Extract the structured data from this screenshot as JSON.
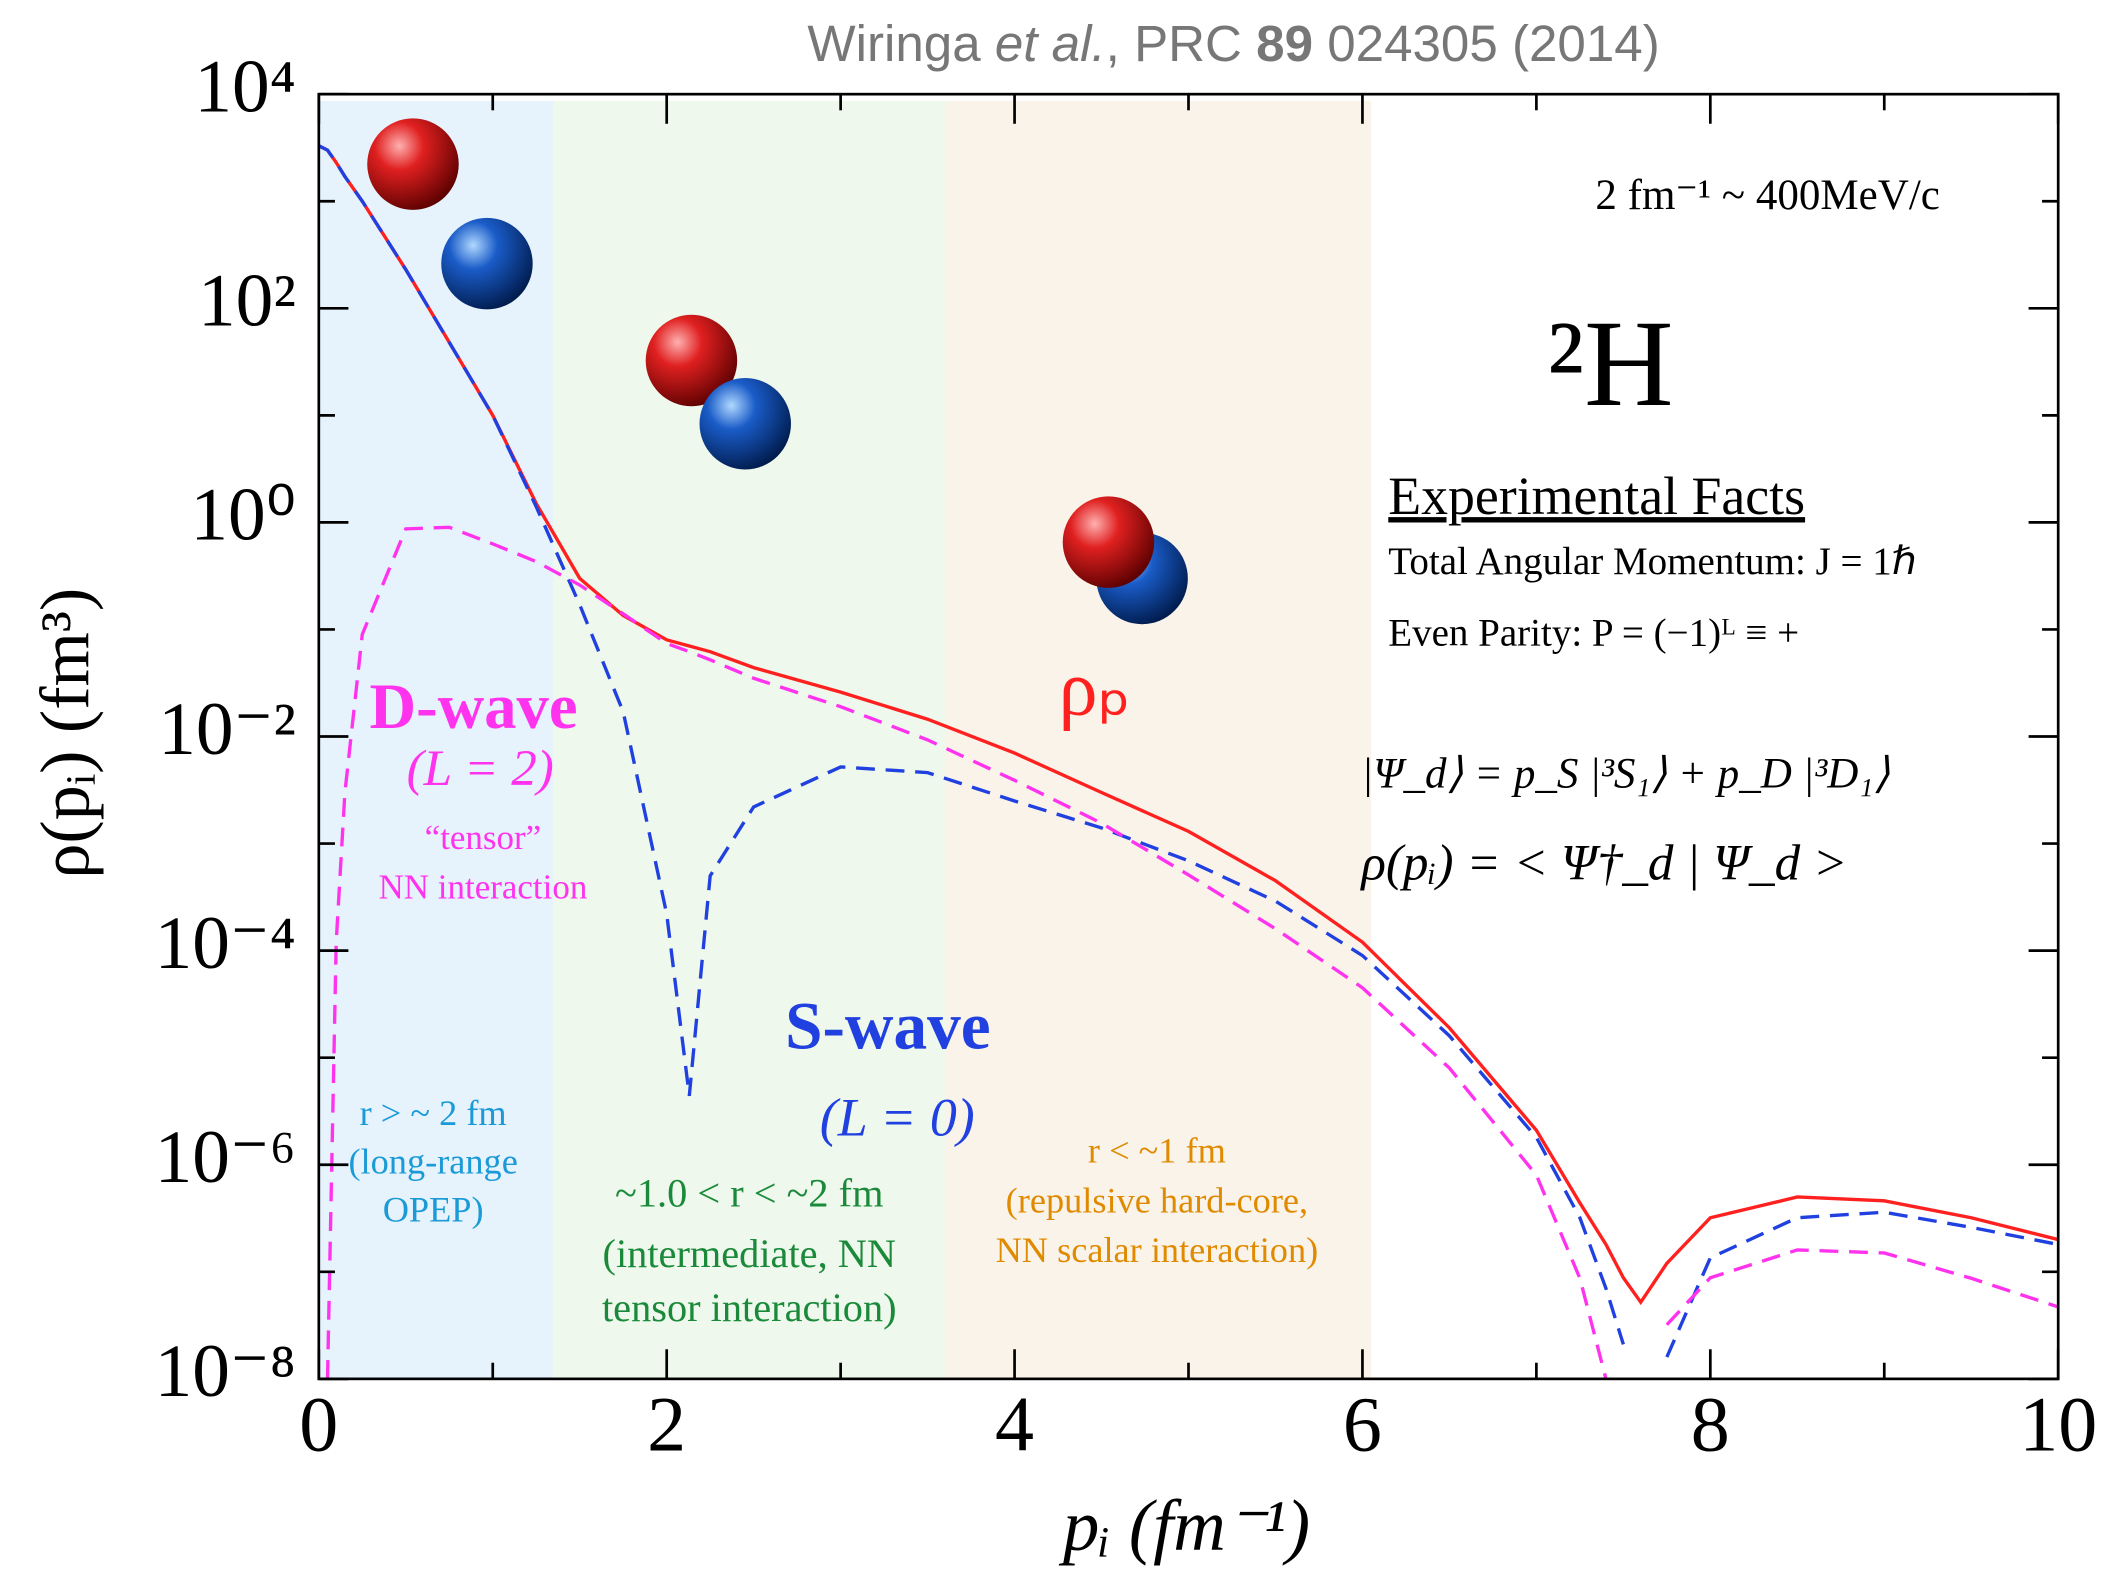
{
  "chart_data": {
    "type": "line",
    "title_parts": [
      "Wiringa ",
      "et al.",
      ", PRC ",
      "89",
      " 024305 (2014)"
    ],
    "xlabel": "pᵢ (fm⁻¹)",
    "ylabel": "ρ(pᵢ) (fm³)",
    "yscale": "log",
    "xlim": [
      0,
      10
    ],
    "ylim": [
      1e-08,
      10000
    ],
    "xticks": [
      0,
      2,
      4,
      6,
      8,
      10
    ],
    "xminorticks": [
      1,
      3,
      5,
      7,
      9
    ],
    "yticks": [
      {
        "value": 10000,
        "label": "10⁴"
      },
      {
        "value": 100,
        "label": "10²"
      },
      {
        "value": 1,
        "label": "10⁰"
      },
      {
        "value": 0.01,
        "label": "10⁻²"
      },
      {
        "value": 0.0001,
        "label": "10⁻⁴"
      },
      {
        "value": 1e-06,
        "label": "10⁻⁶"
      },
      {
        "value": 1e-08,
        "label": "10⁻⁸"
      }
    ],
    "yminorticks": [
      1000,
      10,
      0.1,
      0.001,
      1e-05,
      1e-07
    ],
    "x": [
      0,
      0.05,
      0.1,
      0.15,
      0.25,
      0.5,
      0.75,
      1,
      1.25,
      1.5,
      1.75,
      2,
      2.13,
      2.25,
      2.5,
      3,
      3.5,
      4,
      4.5,
      5,
      5.5,
      6,
      6.5,
      7,
      7.25,
      7.4,
      7.5,
      7.6,
      7.75,
      8,
      8.5,
      9,
      9.5,
      10
    ],
    "series": [
      {
        "name": "ρₚ",
        "color": "#ff2020",
        "dashed": false,
        "values": [
          3300,
          3000,
          2300,
          1700,
          1000,
          230,
          48,
          10,
          1.5,
          0.3,
          0.135,
          0.08,
          0.07,
          0.062,
          0.044,
          0.026,
          0.0145,
          0.007,
          0.003,
          0.0013,
          0.00045,
          0.00012,
          1.9e-05,
          2.1e-06,
          4.4e-07,
          1.8e-07,
          8.8e-08,
          5.2e-08,
          1.2e-07,
          3.2e-07,
          5e-07,
          4.6e-07,
          3.2e-07,
          2e-07
        ]
      },
      {
        "name": "S-wave",
        "color": "#2040e0",
        "dashed": true,
        "values": [
          3300,
          3000,
          2300,
          1700,
          1000,
          230,
          48,
          10,
          1.4,
          0.17,
          0.017,
          0.00022,
          4.4e-06,
          0.0005,
          0.0022,
          0.0052,
          0.0046,
          0.0025,
          0.0014,
          0.00069,
          0.00029,
          9e-05,
          1.6e-05,
          1.8e-06,
          3.2e-07,
          7e-08,
          2.1e-08,
          null,
          1.6e-08,
          1.35e-07,
          3.2e-07,
          3.6e-07,
          2.6e-07,
          1.8e-07
        ]
      },
      {
        "name": "D-wave",
        "color": "#ff33ee",
        "dashed": true,
        "values": [
          null,
          1e-08,
          0.00012,
          0.003,
          0.09,
          0.87,
          0.9,
          0.63,
          0.43,
          0.26,
          0.14,
          0.074,
          0.062,
          0.052,
          0.035,
          0.019,
          0.0093,
          0.0039,
          0.00155,
          0.00051,
          0.00016,
          4.5e-05,
          8e-06,
          8e-07,
          8.7e-08,
          1e-08,
          null,
          null,
          3.2e-08,
          8.8e-08,
          1.6e-07,
          1.5e-07,
          8.7e-08,
          4.7e-08
        ]
      }
    ],
    "series_labels": {
      "d_wave_l": "(L = 2)",
      "d_wave_note": [
        "“tensor”",
        "NN interaction"
      ],
      "s_wave_l": "(L = 0)"
    },
    "regions": [
      {
        "from": 0,
        "to": 1.35,
        "color": "#e6f2fc",
        "text_color": "#1a9ad6",
        "labels": [
          "r  > ~ 2 fm",
          "(long-range",
          "OPEP)"
        ]
      },
      {
        "from": 1.35,
        "to": 3.6,
        "color": "#eef8ec",
        "text_color": "#1a8a3a",
        "labels": [
          "~1.0 < r < ~2 fm",
          "(intermediate, NN",
          "tensor interaction)"
        ]
      },
      {
        "from": 3.6,
        "to": 6.05,
        "color": "#faf3ea",
        "text_color": "#e08a00",
        "labels": [
          "r < ~1 fm",
          "(repulsive hard-core,",
          "NN scalar interaction)"
        ]
      }
    ],
    "annotations": {
      "conversion": "2 fm⁻¹ ~ 400MeV/c",
      "nucleus": "²H",
      "facts_title": "Experimental Facts",
      "fact_1": "Total Angular Momentum: J = 1ℏ",
      "fact_2": "Even Parity: P = (−1)ᴸ ≡ +",
      "wavefunction": "|Ψ_d⟩ = p_S |³S₁⟩ + p_D |³D₁⟩",
      "density": "ρ(pᵢ) = < Ψ†_d | Ψ_d >"
    }
  }
}
